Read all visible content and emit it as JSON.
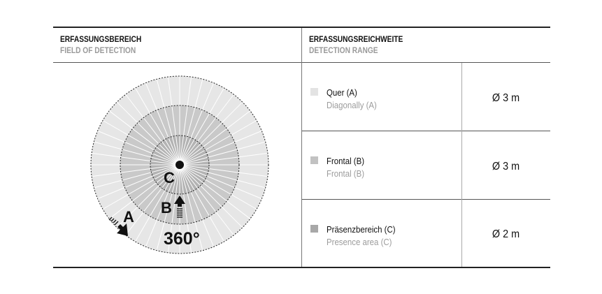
{
  "header": {
    "left": {
      "de": "ERFASSUNGSBEREICH",
      "en": "FIELD OF DETECTION"
    },
    "right": {
      "de": "ERFASSUNGSREICHWEITE",
      "en": "DETECTION RANGE"
    }
  },
  "diagram": {
    "labels": {
      "a": "A",
      "b": "B",
      "c": "C",
      "angle": "360°"
    },
    "colors": {
      "outer": "#e6e6e6",
      "middle": "#c9c9c9",
      "inner": "#b3b3b3"
    }
  },
  "rows": [
    {
      "de": "Quer (A)",
      "en": "Diagonally (A)",
      "value": "Ø 3 m",
      "swatch": "#e3e3e3"
    },
    {
      "de": "Frontal (B)",
      "en": "Frontal (B)",
      "value": "Ø 3 m",
      "swatch": "#c2c2c2"
    },
    {
      "de": "Präsenzbereich (C)",
      "en": "Presence area (C)",
      "value": "Ø 2 m",
      "swatch": "#a8a8a8"
    }
  ]
}
